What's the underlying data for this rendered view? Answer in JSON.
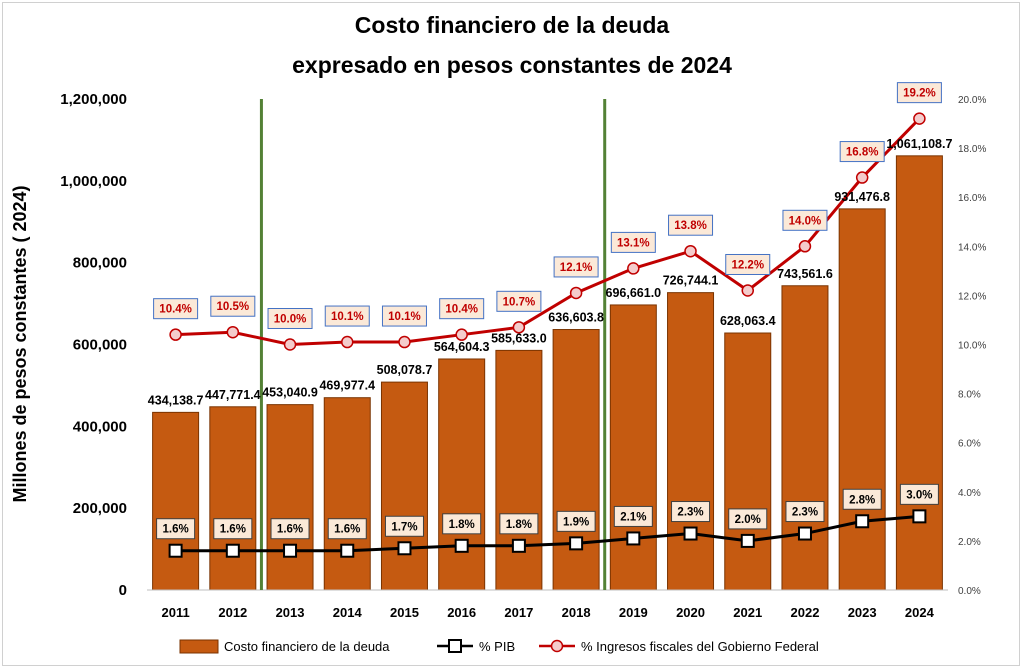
{
  "colors": {
    "bar": "#C55A11",
    "bar_stroke": "#7a3300",
    "pib_line": "#000000",
    "ingresos_line": "#C00000",
    "ingresos_label_bg": "#FBE9D8",
    "ingresos_label_border": "#4472C4",
    "pib_label_bg": "#FBE9D8",
    "pib_label_border": "#404040",
    "marker_fill": "#F4CCCC",
    "vline": "#538135"
  },
  "chart_data": {
    "type": "bar",
    "title": [
      "Costo financiero de la deuda",
      "expresado en pesos constantes de 2024"
    ],
    "ylabel": "Millones de pesos constantes ( 2024)",
    "ylim": [
      0,
      1200000
    ],
    "yticks": [
      0,
      200000,
      400000,
      600000,
      800000,
      1000000,
      1200000
    ],
    "ytick_labels": [
      "0",
      "200,000",
      "400,000",
      "600,000",
      "800,000",
      "1,000,000",
      "1,200,000"
    ],
    "y2lim": [
      0,
      20
    ],
    "y2ticks": [
      0,
      2,
      4,
      6,
      8,
      10,
      12,
      14,
      16,
      18,
      20
    ],
    "y2tick_labels": [
      "0.0%",
      "2.0%",
      "4.0%",
      "6.0%",
      "8.0%",
      "10.0%",
      "12.0%",
      "14.0%",
      "16.0%",
      "18.0%",
      "20.0%"
    ],
    "categories": [
      "2011",
      "2012",
      "2013",
      "2014",
      "2015",
      "2016",
      "2017",
      "2018",
      "2019",
      "2020",
      "2021",
      "2022",
      "2023",
      "2024"
    ],
    "series": [
      {
        "name": "Costo financiero de la deuda",
        "kind": "bar",
        "axis": "left",
        "values": [
          434138.7,
          447771.4,
          453040.9,
          469977.4,
          508078.7,
          564604.3,
          585633.0,
          636603.8,
          696661.0,
          726744.1,
          628063.4,
          743561.6,
          931476.8,
          1061108.7
        ],
        "labels": [
          "434,138.7",
          "447,771.4",
          "453,040.9",
          "469,977.4",
          "508,078.7",
          "564,604.3",
          "585,633.0",
          "636,603.8",
          "696,661.0",
          "726,744.1",
          "628,063.4",
          "743,561.6",
          "931,476.8",
          "1,061,108.7"
        ]
      },
      {
        "name": "% PIB",
        "kind": "line",
        "axis": "right",
        "values": [
          1.6,
          1.6,
          1.6,
          1.6,
          1.7,
          1.8,
          1.8,
          1.9,
          2.1,
          2.3,
          2.0,
          2.3,
          2.8,
          3.0
        ],
        "labels": [
          "1.6%",
          "1.6%",
          "1.6%",
          "1.6%",
          "1.7%",
          "1.8%",
          "1.8%",
          "1.9%",
          "2.1%",
          "2.3%",
          "2.0%",
          "2.3%",
          "2.8%",
          "3.0%"
        ]
      },
      {
        "name": "% Ingresos fiscales del Gobierno Federal",
        "kind": "line",
        "axis": "right",
        "values": [
          10.4,
          10.5,
          10.0,
          10.1,
          10.1,
          10.4,
          10.7,
          12.1,
          13.1,
          13.8,
          12.2,
          14.0,
          16.8,
          19.2
        ],
        "labels": [
          "10.4%",
          "10.5%",
          "10.0%",
          "10.1%",
          "10.1%",
          "10.4%",
          "10.7%",
          "12.1%",
          "13.1%",
          "13.8%",
          "12.2%",
          "14.0%",
          "16.8%",
          "19.2%"
        ]
      }
    ],
    "vertical_markers_between": [
      [
        "2012",
        "2013"
      ],
      [
        "2018",
        "2019"
      ]
    ],
    "legend": {
      "placement": "bottom",
      "items": [
        "Costo financiero de la deuda",
        "% PIB",
        "% Ingresos fiscales del Gobierno Federal"
      ]
    }
  }
}
